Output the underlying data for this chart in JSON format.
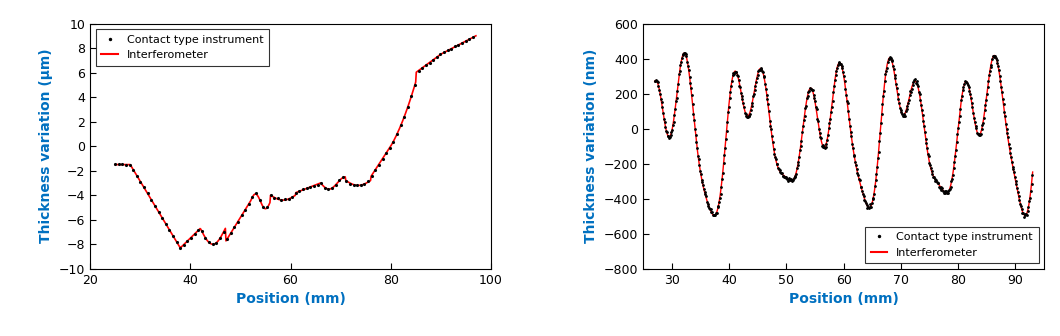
{
  "plot1": {
    "xlim": [
      20,
      100
    ],
    "ylim": [
      -10,
      10
    ],
    "xticks": [
      20,
      40,
      60,
      80,
      100
    ],
    "yticks": [
      -10,
      -8,
      -6,
      -4,
      -2,
      0,
      2,
      4,
      6,
      8,
      10
    ],
    "xlabel": "Position (mm)",
    "ylabel": "Thickness variation (μm)",
    "legend": [
      "Contact type instrument",
      "Interferometer"
    ],
    "contact_color": "#000000",
    "interf_color": "#ff0000"
  },
  "plot2": {
    "xlim": [
      25,
      95
    ],
    "ylim": [
      -800,
      600
    ],
    "xticks": [
      30,
      40,
      50,
      60,
      70,
      80,
      90
    ],
    "yticks": [
      -800,
      -600,
      -400,
      -200,
      0,
      200,
      400,
      600
    ],
    "xlabel": "Position (mm)",
    "ylabel": "Thickness variation (nm)",
    "legend": [
      "Contact type instrument",
      "Interferometer"
    ],
    "contact_color": "#000000",
    "interf_color": "#ff0000"
  },
  "axis_label_color": "#0070c0",
  "tick_label_color": "#000000",
  "legend_fontsize": 8,
  "axis_label_fontsize": 10,
  "tick_fontsize": 9,
  "bg_color": "#ffffff"
}
